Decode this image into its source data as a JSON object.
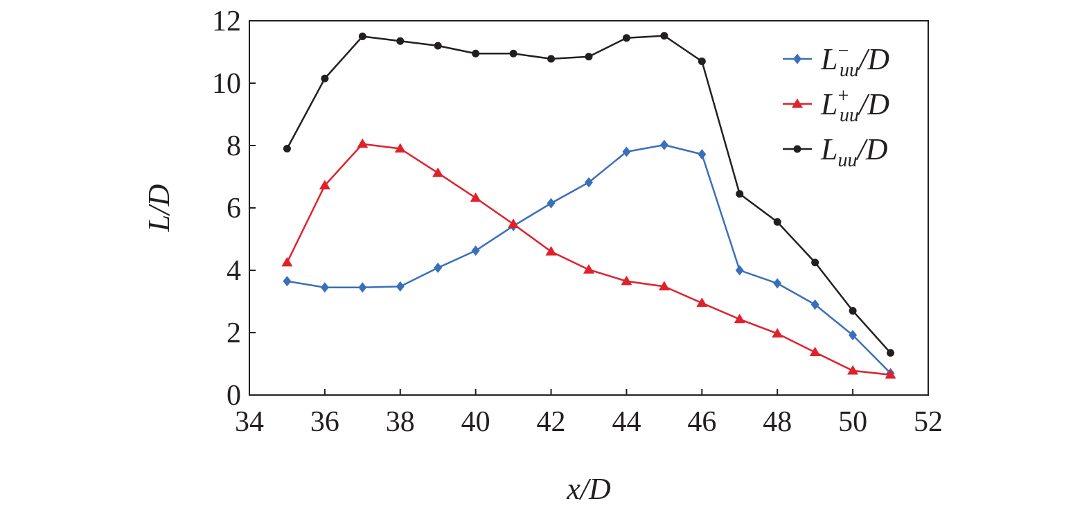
{
  "chart_data": {
    "type": "line",
    "xlabel": "x/D",
    "ylabel": "L/D",
    "xlim": [
      34,
      52
    ],
    "ylim": [
      0,
      12
    ],
    "xticks": [
      34,
      36,
      38,
      40,
      42,
      44,
      46,
      48,
      50,
      52
    ],
    "yticks": [
      0,
      2,
      4,
      6,
      8,
      10,
      12
    ],
    "grid": false,
    "legend_position": "top-right",
    "x": [
      35,
      36,
      37,
      38,
      39,
      40,
      41,
      42,
      43,
      44,
      45,
      46,
      47,
      48,
      49,
      50,
      51
    ],
    "series": [
      {
        "name": "L⁻uu/D",
        "legend": {
          "main": "L",
          "sup": "−",
          "sub": "uu",
          "tail": "/D"
        },
        "color": "#3a6fba",
        "marker": "diamond",
        "values": [
          3.65,
          3.45,
          3.45,
          3.48,
          4.08,
          4.63,
          5.42,
          6.15,
          6.82,
          7.8,
          8.02,
          7.72,
          4.0,
          3.58,
          2.9,
          1.92,
          0.7
        ]
      },
      {
        "name": "L⁺uu/D",
        "legend": {
          "main": "L",
          "sup": "+",
          "sub": "uu",
          "tail": "/D"
        },
        "color": "#e0212b",
        "marker": "triangle",
        "values": [
          4.25,
          6.72,
          8.05,
          7.9,
          7.12,
          6.32,
          5.48,
          4.6,
          4.02,
          3.65,
          3.48,
          2.95,
          2.43,
          1.97,
          1.37,
          0.78,
          0.65
        ]
      },
      {
        "name": "Luu/D",
        "legend": {
          "main": "L",
          "sup": "",
          "sub": "uu",
          "tail": "/D"
        },
        "color": "#231f20",
        "marker": "circle",
        "values": [
          7.9,
          10.15,
          11.5,
          11.35,
          11.2,
          10.95,
          10.95,
          10.78,
          10.85,
          11.45,
          11.52,
          10.7,
          6.45,
          5.55,
          4.25,
          2.7,
          1.35
        ]
      }
    ]
  }
}
